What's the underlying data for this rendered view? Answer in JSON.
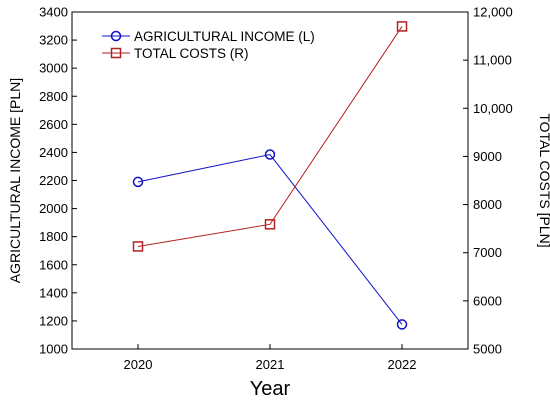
{
  "chart_data": {
    "type": "line",
    "xlabel": "Year",
    "categories": [
      "2020",
      "2021",
      "2022"
    ],
    "y_left": {
      "label": "AGRICULTURAL INCOME [PLN]",
      "range": [
        1000,
        3400
      ],
      "ticks": [
        1000,
        1200,
        1400,
        1600,
        1800,
        2000,
        2200,
        2400,
        2600,
        2800,
        3000,
        3200,
        3400
      ],
      "tick_labels": [
        "1000",
        "1200",
        "1400",
        "1600",
        "1800",
        "2000",
        "2200",
        "2400",
        "2600",
        "2800",
        "3000",
        "3200",
        "3400"
      ]
    },
    "y_right": {
      "label": "TOTAL COSTS  [PLN]",
      "range": [
        5000,
        12000
      ],
      "ticks": [
        5000,
        6000,
        7000,
        8000,
        9000,
        10000,
        11000,
        12000
      ],
      "tick_labels": [
        "5000",
        "6000",
        "7000",
        "8000",
        "9000",
        "10,000",
        "11,000",
        "12,000"
      ]
    },
    "series": [
      {
        "name": "AGRICULTURAL INCOME  (L)",
        "axis": "left",
        "marker": "circle",
        "color": "#1010c8",
        "values": [
          2190,
          2385,
          1175
        ]
      },
      {
        "name": "TOTAL COSTS (R)",
        "axis": "right",
        "marker": "square",
        "color": "#b22222",
        "values": [
          7130,
          7590,
          11700
        ]
      }
    ],
    "legend_position": "top-left",
    "grid": false
  }
}
